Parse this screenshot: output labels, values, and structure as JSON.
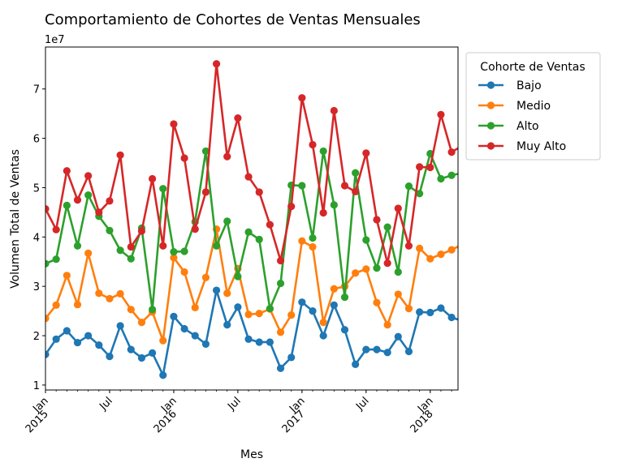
{
  "chart_data": {
    "type": "line",
    "title": "Comportamiento de Cohortes de Ventas Mensuales",
    "xlabel": "Mes",
    "ylabel": "Volumen Total de Ventas",
    "y_offset_label": "1e7",
    "y_scale": 10000000,
    "ylim": [
      0.9,
      7.85
    ],
    "yticks": [
      "1",
      "2",
      "3",
      "4",
      "5",
      "6",
      "7"
    ],
    "x_start": "2015-01",
    "x": [
      "2015-01",
      "2015-02",
      "2015-03",
      "2015-04",
      "2015-05",
      "2015-06",
      "2015-07",
      "2015-08",
      "2015-09",
      "2015-10",
      "2015-11",
      "2015-12",
      "2016-01",
      "2016-02",
      "2016-03",
      "2016-04",
      "2016-05",
      "2016-06",
      "2016-07",
      "2016-08",
      "2016-09",
      "2016-10",
      "2016-11",
      "2016-12",
      "2017-01",
      "2017-02",
      "2017-03",
      "2017-04",
      "2017-05",
      "2017-06",
      "2017-07",
      "2017-08",
      "2017-09",
      "2017-10",
      "2017-11",
      "2017-12",
      "2018-01",
      "2018-02",
      "2018-03",
      "2018-04"
    ],
    "xticks": [
      {
        "month": "2015-01",
        "label": "Jan",
        "year": "2015"
      },
      {
        "month": "2015-07",
        "label": "Jul",
        "year": ""
      },
      {
        "month": "2016-01",
        "label": "Jan",
        "year": "2016"
      },
      {
        "month": "2016-07",
        "label": "Jul",
        "year": ""
      },
      {
        "month": "2017-01",
        "label": "Jan",
        "year": "2017"
      },
      {
        "month": "2017-07",
        "label": "Jul",
        "year": ""
      },
      {
        "month": "2018-01",
        "label": "Jan",
        "year": "2018"
      }
    ],
    "legend": {
      "title": "Cohorte de Ventas",
      "placement": "outside-right-top"
    },
    "series": [
      {
        "name": "Bajo",
        "color": "#1f77b4",
        "values": [
          1.62,
          1.93,
          2.1,
          1.86,
          2.0,
          1.81,
          1.58,
          2.2,
          1.72,
          1.55,
          1.65,
          1.2,
          2.39,
          2.14,
          2.0,
          1.83,
          2.92,
          2.22,
          2.58,
          1.93,
          1.87,
          1.87,
          1.34,
          1.56,
          2.68,
          2.5,
          2.0,
          2.62,
          2.12,
          1.42,
          1.72,
          1.72,
          1.66,
          1.98,
          1.68,
          2.48,
          2.47,
          2.56,
          2.37,
          2.3
        ]
      },
      {
        "name": "Medio",
        "color": "#ff7f0e",
        "values": [
          2.35,
          2.62,
          3.22,
          2.63,
          3.67,
          2.86,
          2.75,
          2.85,
          2.53,
          2.27,
          2.48,
          1.9,
          3.58,
          3.29,
          2.57,
          3.18,
          4.16,
          2.86,
          3.36,
          2.43,
          2.45,
          2.54,
          2.07,
          2.42,
          3.92,
          3.8,
          2.27,
          2.95,
          3.0,
          3.27,
          3.35,
          2.67,
          2.22,
          2.84,
          2.55,
          3.77,
          3.56,
          3.65,
          3.74,
          3.85
        ]
      },
      {
        "name": "Alto",
        "color": "#2ca02c",
        "values": [
          3.46,
          3.55,
          4.64,
          3.82,
          4.85,
          4.42,
          4.13,
          3.73,
          3.56,
          4.18,
          2.53,
          4.98,
          3.7,
          3.71,
          4.31,
          5.74,
          3.82,
          4.32,
          3.2,
          4.1,
          3.95,
          2.55,
          3.06,
          5.05,
          5.04,
          3.98,
          5.74,
          4.65,
          2.78,
          5.3,
          3.94,
          3.37,
          4.2,
          3.29,
          5.03,
          4.88,
          5.69,
          5.18,
          5.25,
          5.3
        ]
      },
      {
        "name": "Muy Alto",
        "color": "#d62728",
        "values": [
          4.57,
          4.15,
          5.34,
          4.75,
          5.24,
          4.5,
          4.73,
          5.66,
          3.8,
          4.12,
          5.18,
          3.82,
          6.29,
          5.6,
          4.16,
          4.91,
          7.51,
          5.63,
          6.41,
          5.22,
          4.91,
          4.25,
          3.52,
          4.62,
          6.82,
          5.87,
          4.49,
          6.56,
          5.04,
          4.92,
          5.7,
          4.35,
          3.47,
          4.58,
          3.82,
          5.42,
          5.41,
          6.48,
          5.72,
          5.85
        ]
      }
    ]
  }
}
